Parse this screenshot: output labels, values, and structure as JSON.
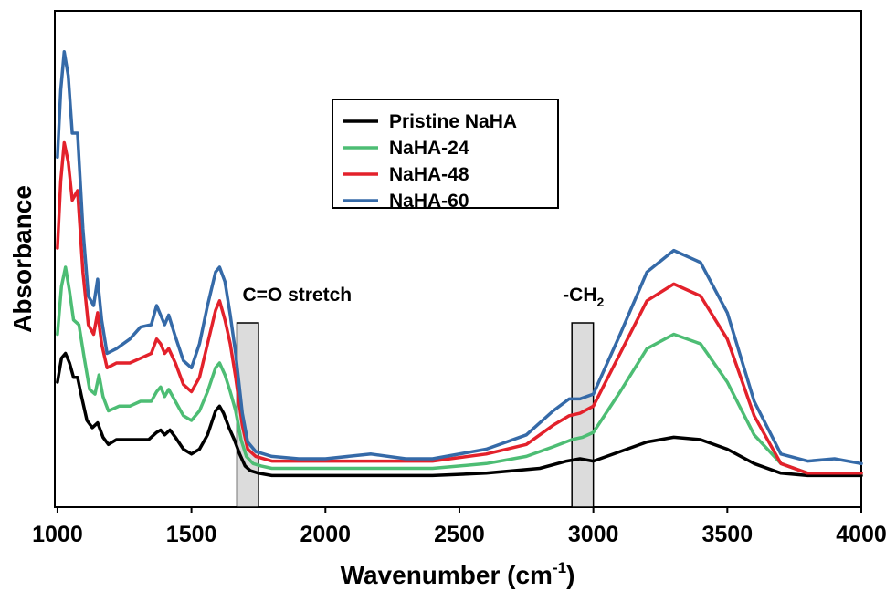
{
  "chart_data": {
    "type": "line",
    "xlabel": "Wavenumber (cm",
    "xlabel_sup": "-1",
    "xlabel_close": ")",
    "ylabel": "Absorbance",
    "xlim": [
      990,
      4000
    ],
    "ylim": [
      0,
      1
    ],
    "x_ticks": [
      1000,
      1500,
      2000,
      2500,
      3000,
      3500,
      4000
    ],
    "tick_labels": [
      "1000",
      "1500",
      "2000",
      "2500",
      "3000",
      "3500",
      "4000"
    ],
    "y_ticks_labeled": false,
    "grid": false,
    "legend_position": "top-center",
    "annotations": [
      {
        "text": "C=O stretch",
        "x_range": [
          1670,
          1750
        ]
      },
      {
        "text": "-CH",
        "sub": "2",
        "x_range": [
          2920,
          3000
        ]
      }
    ],
    "series": [
      {
        "name": "Pristine NaHA",
        "color": "#000000",
        "points": [
          [
            1000,
            0.24
          ],
          [
            1015,
            0.29
          ],
          [
            1030,
            0.3
          ],
          [
            1045,
            0.28
          ],
          [
            1060,
            0.25
          ],
          [
            1075,
            0.25
          ],
          [
            1090,
            0.21
          ],
          [
            1110,
            0.16
          ],
          [
            1130,
            0.145
          ],
          [
            1150,
            0.155
          ],
          [
            1170,
            0.125
          ],
          [
            1190,
            0.11
          ],
          [
            1220,
            0.12
          ],
          [
            1260,
            0.12
          ],
          [
            1300,
            0.12
          ],
          [
            1340,
            0.12
          ],
          [
            1370,
            0.135
          ],
          [
            1385,
            0.14
          ],
          [
            1400,
            0.13
          ],
          [
            1420,
            0.14
          ],
          [
            1440,
            0.125
          ],
          [
            1470,
            0.1
          ],
          [
            1500,
            0.09
          ],
          [
            1530,
            0.1
          ],
          [
            1560,
            0.13
          ],
          [
            1590,
            0.18
          ],
          [
            1605,
            0.19
          ],
          [
            1620,
            0.175
          ],
          [
            1640,
            0.145
          ],
          [
            1660,
            0.12
          ],
          [
            1680,
            0.09
          ],
          [
            1700,
            0.065
          ],
          [
            1720,
            0.055
          ],
          [
            1750,
            0.05
          ],
          [
            1800,
            0.045
          ],
          [
            1900,
            0.045
          ],
          [
            2000,
            0.045
          ],
          [
            2200,
            0.045
          ],
          [
            2400,
            0.045
          ],
          [
            2600,
            0.05
          ],
          [
            2800,
            0.06
          ],
          [
            2900,
            0.075
          ],
          [
            2950,
            0.08
          ],
          [
            3000,
            0.075
          ],
          [
            3100,
            0.095
          ],
          [
            3200,
            0.115
          ],
          [
            3300,
            0.125
          ],
          [
            3400,
            0.12
          ],
          [
            3500,
            0.1
          ],
          [
            3600,
            0.07
          ],
          [
            3700,
            0.05
          ],
          [
            3800,
            0.045
          ],
          [
            4000,
            0.045
          ]
        ]
      },
      {
        "name": "NaHA-24",
        "color": "#4dbd74",
        "points": [
          [
            1000,
            0.34
          ],
          [
            1015,
            0.44
          ],
          [
            1030,
            0.48
          ],
          [
            1045,
            0.43
          ],
          [
            1060,
            0.37
          ],
          [
            1080,
            0.36
          ],
          [
            1100,
            0.29
          ],
          [
            1120,
            0.225
          ],
          [
            1140,
            0.215
          ],
          [
            1155,
            0.255
          ],
          [
            1170,
            0.21
          ],
          [
            1190,
            0.18
          ],
          [
            1230,
            0.19
          ],
          [
            1270,
            0.19
          ],
          [
            1310,
            0.2
          ],
          [
            1350,
            0.2
          ],
          [
            1370,
            0.22
          ],
          [
            1385,
            0.23
          ],
          [
            1400,
            0.21
          ],
          [
            1415,
            0.225
          ],
          [
            1440,
            0.2
          ],
          [
            1470,
            0.17
          ],
          [
            1500,
            0.16
          ],
          [
            1530,
            0.18
          ],
          [
            1560,
            0.22
          ],
          [
            1590,
            0.27
          ],
          [
            1605,
            0.28
          ],
          [
            1625,
            0.255
          ],
          [
            1645,
            0.22
          ],
          [
            1665,
            0.18
          ],
          [
            1685,
            0.12
          ],
          [
            1705,
            0.085
          ],
          [
            1730,
            0.07
          ],
          [
            1760,
            0.065
          ],
          [
            1800,
            0.06
          ],
          [
            1900,
            0.06
          ],
          [
            2000,
            0.06
          ],
          [
            2200,
            0.06
          ],
          [
            2400,
            0.06
          ],
          [
            2600,
            0.07
          ],
          [
            2750,
            0.085
          ],
          [
            2850,
            0.105
          ],
          [
            2920,
            0.12
          ],
          [
            2960,
            0.125
          ],
          [
            3000,
            0.135
          ],
          [
            3100,
            0.22
          ],
          [
            3200,
            0.31
          ],
          [
            3300,
            0.34
          ],
          [
            3400,
            0.32
          ],
          [
            3500,
            0.24
          ],
          [
            3600,
            0.13
          ],
          [
            3700,
            0.07
          ],
          [
            3800,
            0.05
          ],
          [
            4000,
            0.05
          ]
        ]
      },
      {
        "name": "NaHA-48",
        "color": "#e3212b",
        "points": [
          [
            1000,
            0.52
          ],
          [
            1012,
            0.66
          ],
          [
            1025,
            0.74
          ],
          [
            1040,
            0.7
          ],
          [
            1055,
            0.62
          ],
          [
            1075,
            0.64
          ],
          [
            1095,
            0.47
          ],
          [
            1115,
            0.36
          ],
          [
            1135,
            0.34
          ],
          [
            1150,
            0.385
          ],
          [
            1165,
            0.32
          ],
          [
            1185,
            0.27
          ],
          [
            1220,
            0.28
          ],
          [
            1270,
            0.28
          ],
          [
            1310,
            0.29
          ],
          [
            1350,
            0.3
          ],
          [
            1370,
            0.33
          ],
          [
            1385,
            0.32
          ],
          [
            1400,
            0.3
          ],
          [
            1415,
            0.31
          ],
          [
            1440,
            0.28
          ],
          [
            1470,
            0.235
          ],
          [
            1500,
            0.22
          ],
          [
            1530,
            0.25
          ],
          [
            1560,
            0.32
          ],
          [
            1590,
            0.39
          ],
          [
            1605,
            0.41
          ],
          [
            1625,
            0.37
          ],
          [
            1645,
            0.32
          ],
          [
            1665,
            0.25
          ],
          [
            1690,
            0.15
          ],
          [
            1710,
            0.1
          ],
          [
            1740,
            0.085
          ],
          [
            1800,
            0.075
          ],
          [
            1900,
            0.075
          ],
          [
            2000,
            0.075
          ],
          [
            2200,
            0.075
          ],
          [
            2400,
            0.075
          ],
          [
            2600,
            0.09
          ],
          [
            2750,
            0.11
          ],
          [
            2850,
            0.15
          ],
          [
            2910,
            0.17
          ],
          [
            2950,
            0.175
          ],
          [
            3000,
            0.19
          ],
          [
            3100,
            0.3
          ],
          [
            3200,
            0.41
          ],
          [
            3300,
            0.445
          ],
          [
            3400,
            0.42
          ],
          [
            3500,
            0.33
          ],
          [
            3600,
            0.17
          ],
          [
            3700,
            0.07
          ],
          [
            3800,
            0.05
          ],
          [
            4000,
            0.05
          ]
        ]
      },
      {
        "name": "NaHA-60",
        "color": "#356aa8",
        "points": [
          [
            1000,
            0.71
          ],
          [
            1012,
            0.85
          ],
          [
            1025,
            0.93
          ],
          [
            1040,
            0.88
          ],
          [
            1055,
            0.76
          ],
          [
            1075,
            0.76
          ],
          [
            1095,
            0.56
          ],
          [
            1115,
            0.42
          ],
          [
            1135,
            0.4
          ],
          [
            1150,
            0.455
          ],
          [
            1165,
            0.37
          ],
          [
            1185,
            0.3
          ],
          [
            1220,
            0.31
          ],
          [
            1270,
            0.33
          ],
          [
            1310,
            0.355
          ],
          [
            1350,
            0.36
          ],
          [
            1370,
            0.4
          ],
          [
            1385,
            0.38
          ],
          [
            1400,
            0.36
          ],
          [
            1415,
            0.38
          ],
          [
            1440,
            0.335
          ],
          [
            1470,
            0.285
          ],
          [
            1500,
            0.27
          ],
          [
            1530,
            0.32
          ],
          [
            1560,
            0.4
          ],
          [
            1590,
            0.47
          ],
          [
            1605,
            0.48
          ],
          [
            1625,
            0.45
          ],
          [
            1645,
            0.38
          ],
          [
            1665,
            0.3
          ],
          [
            1690,
            0.175
          ],
          [
            1710,
            0.115
          ],
          [
            1740,
            0.095
          ],
          [
            1800,
            0.085
          ],
          [
            1900,
            0.08
          ],
          [
            2000,
            0.08
          ],
          [
            2170,
            0.09
          ],
          [
            2300,
            0.08
          ],
          [
            2400,
            0.08
          ],
          [
            2600,
            0.1
          ],
          [
            2750,
            0.13
          ],
          [
            2850,
            0.18
          ],
          [
            2910,
            0.205
          ],
          [
            2950,
            0.205
          ],
          [
            3000,
            0.215
          ],
          [
            3100,
            0.34
          ],
          [
            3200,
            0.47
          ],
          [
            3300,
            0.515
          ],
          [
            3400,
            0.49
          ],
          [
            3500,
            0.385
          ],
          [
            3600,
            0.2
          ],
          [
            3700,
            0.09
          ],
          [
            3800,
            0.075
          ],
          [
            3900,
            0.08
          ],
          [
            4000,
            0.07
          ]
        ]
      }
    ]
  }
}
